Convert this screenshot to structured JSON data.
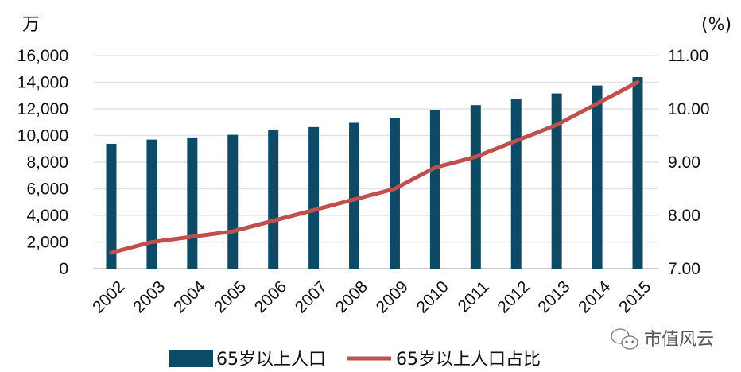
{
  "chart_data": {
    "type": "bar+line",
    "categories": [
      "2002",
      "2003",
      "2004",
      "2005",
      "2006",
      "2007",
      "2008",
      "2009",
      "2010",
      "2011",
      "2012",
      "2013",
      "2014",
      "2015"
    ],
    "series": [
      {
        "name": "65岁以上人口",
        "type": "bar",
        "axis": "left",
        "color": "#0d4a66",
        "values": [
          9377,
          9692,
          9857,
          10055,
          10419,
          10636,
          10956,
          11307,
          11894,
          12288,
          12714,
          13161,
          13755,
          14386
        ]
      },
      {
        "name": "65岁以上人口占比",
        "type": "line",
        "axis": "right",
        "color": "#c0504d",
        "values": [
          7.3,
          7.5,
          7.6,
          7.7,
          7.9,
          8.1,
          8.3,
          8.5,
          8.9,
          9.1,
          9.4,
          9.7,
          10.1,
          10.5
        ]
      }
    ],
    "left_axis": {
      "unit": "万",
      "ylim": [
        0,
        16000
      ],
      "ticks": [
        "0",
        "2,000",
        "4,000",
        "6,000",
        "8,000",
        "10,000",
        "12,000",
        "14,000",
        "16,000"
      ]
    },
    "right_axis": {
      "unit": "(%)",
      "ylim": [
        7,
        11
      ],
      "ticks": [
        "7.00",
        "8.00",
        "9.00",
        "10.00",
        "11.00"
      ]
    },
    "grid": true,
    "legend_position": "bottom"
  },
  "watermark": "市值风云"
}
